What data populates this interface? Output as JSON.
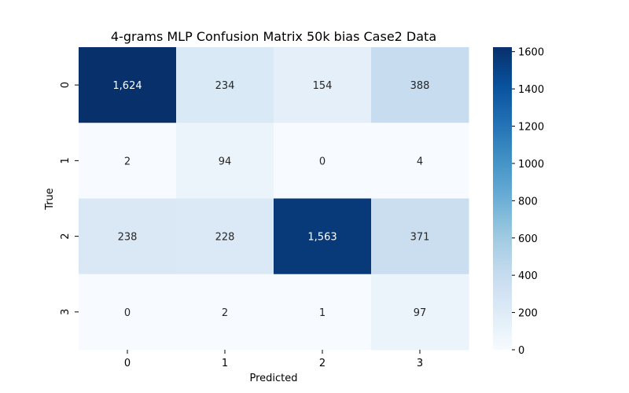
{
  "chart_data": {
    "type": "heatmap",
    "title": "4-grams MLP Confusion Matrix 50k bias Case2 Data",
    "xlabel": "Predicted",
    "ylabel": "True",
    "x_categories": [
      "0",
      "1",
      "2",
      "3"
    ],
    "y_categories": [
      "0",
      "1",
      "2",
      "3"
    ],
    "values": [
      [
        1624,
        234,
        154,
        388
      ],
      [
        2,
        94,
        0,
        4
      ],
      [
        238,
        228,
        1563,
        371
      ],
      [
        0,
        2,
        1,
        97
      ]
    ],
    "value_labels": [
      [
        "1,624",
        "234",
        "154",
        "388"
      ],
      [
        "2",
        "94",
        "0",
        "4"
      ],
      [
        "238",
        "228",
        "1,563",
        "371"
      ],
      [
        "0",
        "2",
        "1",
        "97"
      ]
    ],
    "colormap": "Blues",
    "colorbar": {
      "min": 0,
      "max": 1624,
      "ticks": [
        0,
        200,
        400,
        600,
        800,
        1000,
        1200,
        1400,
        1600
      ],
      "tick_labels": [
        "0",
        "200",
        "400",
        "600",
        "800",
        "1000",
        "1200",
        "1400",
        "1600"
      ]
    }
  }
}
